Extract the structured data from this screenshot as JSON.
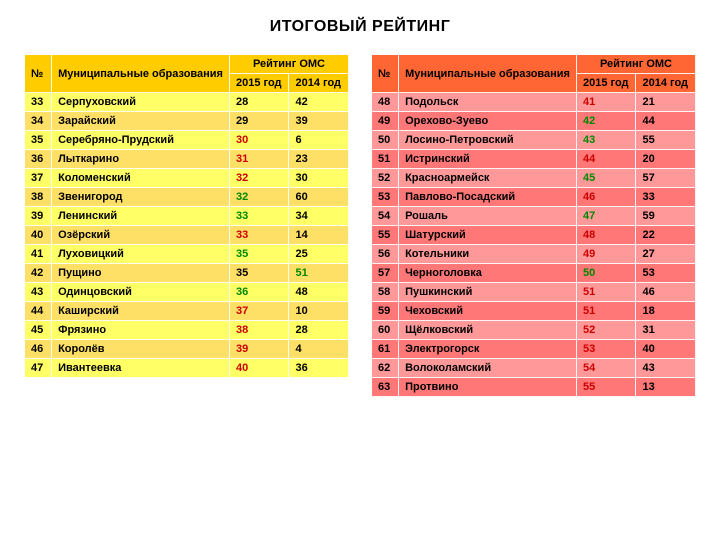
{
  "title": "ИТОГОВЫЙ РЕЙТИНГ",
  "columns": {
    "no": "№",
    "name": "Муниципальные образования",
    "omc": "Рейтинг ОМС",
    "y2015": "2015 год",
    "y2014": "2014 год"
  },
  "left_rows": [
    {
      "n": "33",
      "name": "Серпуховский",
      "v2015": "28",
      "c2015": "black",
      "v2014": "42",
      "c2014": "black"
    },
    {
      "n": "34",
      "name": "Зарайский",
      "v2015": "29",
      "c2015": "black",
      "v2014": "39",
      "c2014": "black"
    },
    {
      "n": "35",
      "name": "Серебряно-Прудский",
      "v2015": "30",
      "c2015": "red",
      "v2014": "6",
      "c2014": "black"
    },
    {
      "n": "36",
      "name": "Лыткарино",
      "v2015": "31",
      "c2015": "red",
      "v2014": "23",
      "c2014": "black"
    },
    {
      "n": "37",
      "name": "Коломенский",
      "v2015": "32",
      "c2015": "red",
      "v2014": "30",
      "c2014": "black"
    },
    {
      "n": "38",
      "name": "Звенигород",
      "v2015": "32",
      "c2015": "green",
      "v2014": "60",
      "c2014": "black"
    },
    {
      "n": "39",
      "name": "Ленинский",
      "v2015": "33",
      "c2015": "green",
      "v2014": "34",
      "c2014": "black"
    },
    {
      "n": "40",
      "name": "Озёрский",
      "v2015": "33",
      "c2015": "red",
      "v2014": "14",
      "c2014": "black"
    },
    {
      "n": "41",
      "name": "Луховицкий",
      "v2015": "35",
      "c2015": "green",
      "v2014": "25",
      "c2014": "black"
    },
    {
      "n": "42",
      "name": "Пущино",
      "v2015": "35",
      "c2015": "black",
      "v2014": "51",
      "c2014": "green"
    },
    {
      "n": "43",
      "name": "Одинцовский",
      "v2015": "36",
      "c2015": "green",
      "v2014": "48",
      "c2014": "black"
    },
    {
      "n": "44",
      "name": "Каширский",
      "v2015": "37",
      "c2015": "red",
      "v2014": "10",
      "c2014": "black"
    },
    {
      "n": "45",
      "name": "Фрязино",
      "v2015": "38",
      "c2015": "red",
      "v2014": "28",
      "c2014": "black"
    },
    {
      "n": "46",
      "name": "Королёв",
      "v2015": "39",
      "c2015": "red",
      "v2014": "4",
      "c2014": "black"
    },
    {
      "n": "47",
      "name": "Ивантеевка",
      "v2015": "40",
      "c2015": "red",
      "v2014": "36",
      "c2014": "black"
    }
  ],
  "right_rows": [
    {
      "n": "48",
      "name": "Подольск",
      "v2015": "41",
      "c2015": "red",
      "v2014": "21",
      "c2014": "black"
    },
    {
      "n": "49",
      "name": "Орехово-Зуево",
      "v2015": "42",
      "c2015": "green",
      "v2014": "44",
      "c2014": "black"
    },
    {
      "n": "50",
      "name": "Лосино-Петровский",
      "v2015": "43",
      "c2015": "green",
      "v2014": "55",
      "c2014": "black"
    },
    {
      "n": "51",
      "name": "Истринский",
      "v2015": "44",
      "c2015": "red",
      "v2014": "20",
      "c2014": "black"
    },
    {
      "n": "52",
      "name": "Красноармейск",
      "v2015": "45",
      "c2015": "green",
      "v2014": "57",
      "c2014": "black"
    },
    {
      "n": "53",
      "name": "Павлово-Посадский",
      "v2015": "46",
      "c2015": "red",
      "v2014": "33",
      "c2014": "black"
    },
    {
      "n": "54",
      "name": "Рошаль",
      "v2015": "47",
      "c2015": "green",
      "v2014": "59",
      "c2014": "black"
    },
    {
      "n": "55",
      "name": "Шатурский",
      "v2015": "48",
      "c2015": "red",
      "v2014": "22",
      "c2014": "black"
    },
    {
      "n": "56",
      "name": "Котельники",
      "v2015": "49",
      "c2015": "red",
      "v2014": "27",
      "c2014": "black"
    },
    {
      "n": "57",
      "name": "Черноголовка",
      "v2015": "50",
      "c2015": "green",
      "v2014": "53",
      "c2014": "black"
    },
    {
      "n": "58",
      "name": "Пушкинский",
      "v2015": "51",
      "c2015": "red",
      "v2014": "46",
      "c2014": "black"
    },
    {
      "n": "59",
      "name": "Чеховский",
      "v2015": "51",
      "c2015": "red",
      "v2014": "18",
      "c2014": "black"
    },
    {
      "n": "60",
      "name": "Щёлковский",
      "v2015": "52",
      "c2015": "red",
      "v2014": "31",
      "c2014": "black"
    },
    {
      "n": "61",
      "name": "Электрогорск",
      "v2015": "53",
      "c2015": "red",
      "v2014": "40",
      "c2014": "black"
    },
    {
      "n": "62",
      "name": "Волоколамский",
      "v2015": "54",
      "c2015": "red",
      "v2014": "43",
      "c2014": "black"
    },
    {
      "n": "63",
      "name": "Протвино",
      "v2015": "55",
      "c2015": "red",
      "v2014": "13",
      "c2014": "black"
    }
  ]
}
